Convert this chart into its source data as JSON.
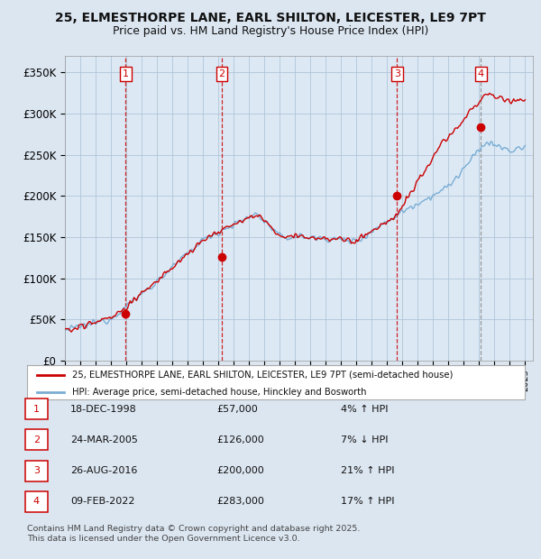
{
  "title_line1": "25, ELMESTHORPE LANE, EARL SHILTON, LEICESTER, LE9 7PT",
  "title_line2": "Price paid vs. HM Land Registry's House Price Index (HPI)",
  "ylabel_ticks": [
    "£0",
    "£50K",
    "£100K",
    "£150K",
    "£200K",
    "£250K",
    "£300K",
    "£350K"
  ],
  "ytick_values": [
    0,
    50000,
    100000,
    150000,
    200000,
    250000,
    300000,
    350000
  ],
  "ylim": [
    0,
    370000
  ],
  "sale_prices": [
    57000,
    126000,
    200000,
    283000
  ],
  "sale_labels": [
    "1",
    "2",
    "3",
    "4"
  ],
  "sale_pct": [
    "4% ↑ HPI",
    "7% ↓ HPI",
    "21% ↑ HPI",
    "17% ↑ HPI"
  ],
  "sale_dates_str": [
    "18-DEC-1998",
    "24-MAR-2005",
    "26-AUG-2016",
    "09-FEB-2022"
  ],
  "sale_prices_str": [
    "£57,000",
    "£126,000",
    "£200,000",
    "£283,000"
  ],
  "sale_year_decimals": [
    1998.96,
    2005.23,
    2016.65,
    2022.11
  ],
  "hpi_color": "#7aadd4",
  "price_color": "#cc0000",
  "sale_marker_color": "#cc0000",
  "background_color": "#dce6f1",
  "plot_bg_color": "#dce9f5",
  "grid_color": "#b0c4d8",
  "legend_line1": "25, ELMESTHORPE LANE, EARL SHILTON, LEICESTER, LE9 7PT (semi-detached house)",
  "legend_line2": "HPI: Average price, semi-detached house, Hinckley and Bosworth",
  "footer": "Contains HM Land Registry data © Crown copyright and database right 2025.\nThis data is licensed under the Open Government Licence v3.0.",
  "xstart_year": 1995,
  "xend_year": 2025
}
